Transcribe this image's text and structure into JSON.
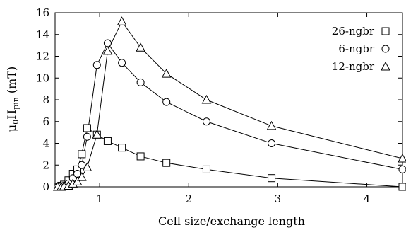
{
  "chart_data": {
    "type": "line",
    "xlabel": "Cell size/exchange length",
    "ylabel": "μ0Hpin (mT)",
    "ylabel_parts": {
      "main": "μ",
      "sub1": "0",
      "main2": "H",
      "sub2": "pin",
      "unit": " (mT)"
    },
    "xlim": [
      0.5,
      4.4
    ],
    "ylim": [
      0,
      16
    ],
    "xticks": [
      1,
      2,
      3,
      4
    ],
    "yticks": [
      0,
      2,
      4,
      6,
      8,
      10,
      12,
      14,
      16
    ],
    "grid": false,
    "legend_position": "top-right",
    "series": [
      {
        "name": "26-ngbr",
        "marker": "square",
        "x": [
          0.53,
          0.57,
          0.6,
          0.65,
          0.7,
          0.75,
          0.8,
          0.86,
          0.97,
          1.09,
          1.25,
          1.46,
          1.75,
          2.2,
          2.93,
          4.4
        ],
        "y": [
          0.0,
          0.1,
          0.2,
          0.6,
          1.2,
          1.6,
          3.0,
          5.4,
          4.8,
          4.2,
          3.6,
          2.8,
          2.2,
          1.6,
          0.8,
          0.0
        ]
      },
      {
        "name": "6-ngbr",
        "marker": "circle",
        "x": [
          0.53,
          0.57,
          0.6,
          0.65,
          0.7,
          0.75,
          0.8,
          0.86,
          0.97,
          1.09,
          1.25,
          1.46,
          1.75,
          2.2,
          2.93,
          4.4
        ],
        "y": [
          0.0,
          0.05,
          0.1,
          0.3,
          0.8,
          1.2,
          2.0,
          4.6,
          11.2,
          13.2,
          11.4,
          9.6,
          7.8,
          6.0,
          4.0,
          1.6
        ]
      },
      {
        "name": "12-ngbr",
        "marker": "triangle",
        "x": [
          0.53,
          0.57,
          0.6,
          0.65,
          0.7,
          0.75,
          0.8,
          0.86,
          0.97,
          1.09,
          1.25,
          1.46,
          1.75,
          2.2,
          2.93,
          4.4
        ],
        "y": [
          0.0,
          0.0,
          0.05,
          0.1,
          0.3,
          0.5,
          0.9,
          1.8,
          4.8,
          12.5,
          15.2,
          12.8,
          10.4,
          8.0,
          5.6,
          2.6
        ]
      }
    ]
  }
}
